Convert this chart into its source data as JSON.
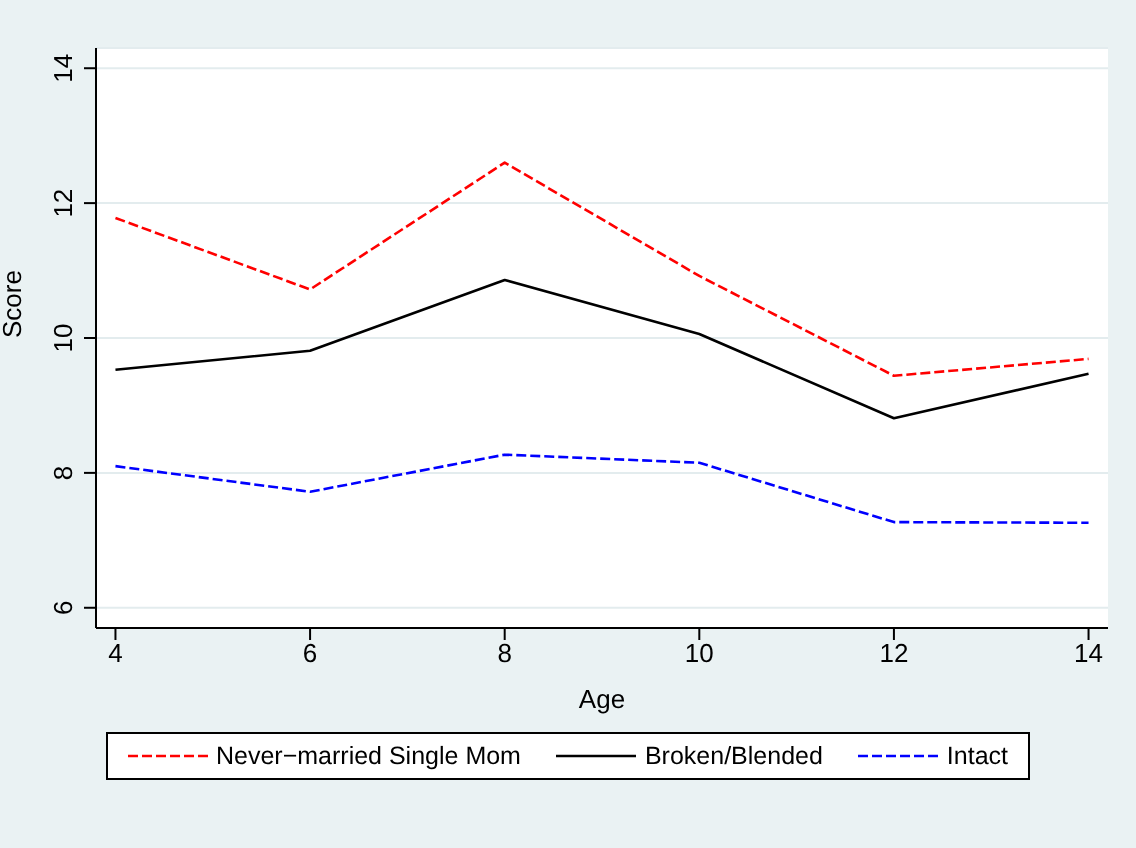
{
  "chart_data": {
    "type": "line",
    "xlabel": "Age",
    "ylabel": "Score",
    "x": [
      4,
      6,
      8,
      10,
      12,
      14
    ],
    "series": [
      {
        "name": "Never−married Single Mom",
        "color": "#ff0000",
        "line_style": "dashed",
        "values": [
          11.78,
          10.72,
          12.6,
          10.92,
          9.44,
          9.69
        ]
      },
      {
        "name": "Broken/Blended",
        "color": "#000000",
        "line_style": "solid",
        "values": [
          9.53,
          9.81,
          10.86,
          10.06,
          8.81,
          9.47
        ]
      },
      {
        "name": "Intact",
        "color": "#0000ff",
        "line_style": "dashed",
        "values": [
          8.1,
          7.72,
          8.27,
          8.15,
          7.27,
          7.26
        ]
      }
    ],
    "xlim": [
      3.8,
      14.2
    ],
    "xticks": [
      4,
      6,
      8,
      10,
      12,
      14
    ],
    "ylim": [
      5.7,
      14.3
    ],
    "yticks": [
      6,
      8,
      10,
      12,
      14
    ],
    "grid": "y",
    "legend": "bottom",
    "marker": "none"
  }
}
